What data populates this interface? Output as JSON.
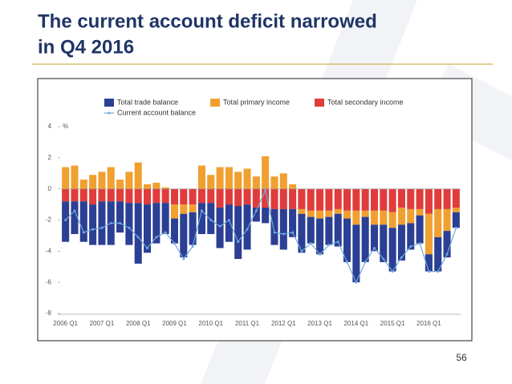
{
  "slide": {
    "title_lines": [
      "The current account deficit narrowed",
      "in Q4 2016"
    ],
    "page_number": 56
  },
  "chart_data": {
    "type": "bar",
    "stacked": true,
    "categories": [
      "2006 Q1",
      null,
      null,
      null,
      "2007 Q1",
      null,
      null,
      null,
      "2008 Q1",
      null,
      null,
      null,
      "2009 Q1",
      null,
      null,
      null,
      "2010 Q1",
      null,
      null,
      null,
      "2011 Q1",
      null,
      null,
      null,
      "2012 Q1",
      null,
      null,
      null,
      "2013 Q1",
      null,
      null,
      null,
      "2014 Q1",
      null,
      null,
      null,
      "2015 Q1",
      null,
      null,
      null,
      "2016 Q1",
      null,
      null,
      null
    ],
    "series": [
      {
        "name": "Total trade balance",
        "type": "bar",
        "color": "#2b3f94",
        "values": [
          -2.6,
          -2.1,
          -2.6,
          -2.6,
          -2.8,
          -2.8,
          -2.0,
          -2.7,
          -3.9,
          -3.1,
          -2.6,
          -2.0,
          -1.6,
          -2.8,
          -2.1,
          -2.0,
          -2.0,
          -2.6,
          -2.4,
          -3.4,
          -2.9,
          -0.9,
          -1.0,
          -2.3,
          -2.6,
          -1.8,
          -2.5,
          -1.7,
          -2.3,
          -1.8,
          -2.1,
          -2.8,
          -3.7,
          -2.9,
          -1.7,
          -2.4,
          -2.8,
          -2.3,
          -1.7,
          -1.8,
          -1.1,
          -2.2,
          -1.7,
          -1.0
        ]
      },
      {
        "name": "Total primary income",
        "type": "bar",
        "color": "#f0a030",
        "values": [
          1.4,
          1.5,
          0.6,
          0.9,
          1.1,
          1.4,
          0.6,
          1.1,
          1.7,
          0.3,
          0.4,
          0.1,
          -0.9,
          -0.6,
          -0.5,
          1.5,
          0.9,
          1.4,
          1.4,
          1.1,
          1.3,
          0.8,
          2.1,
          0.8,
          1.0,
          0.3,
          -0.3,
          -0.4,
          -0.5,
          -0.4,
          -0.3,
          -0.5,
          -0.9,
          -0.4,
          -0.9,
          -0.9,
          -1.0,
          -1.1,
          -0.9,
          -0.4,
          -2.6,
          -1.8,
          -1.4,
          -0.3
        ]
      },
      {
        "name": "Total secondary income",
        "type": "bar",
        "color": "#e03c3c",
        "values": [
          -0.8,
          -0.8,
          -0.8,
          -1.0,
          -0.8,
          -0.8,
          -0.8,
          -0.9,
          -0.9,
          -1.0,
          -0.9,
          -0.9,
          -1.0,
          -1.0,
          -1.0,
          -0.9,
          -0.9,
          -1.2,
          -1.0,
          -1.1,
          -1.0,
          -1.2,
          -1.2,
          -1.3,
          -1.3,
          -1.3,
          -1.3,
          -1.4,
          -1.4,
          -1.4,
          -1.3,
          -1.4,
          -1.4,
          -1.4,
          -1.4,
          -1.4,
          -1.5,
          -1.2,
          -1.3,
          -1.3,
          -1.6,
          -1.3,
          -1.3,
          -1.2
        ]
      },
      {
        "name": "Current account balance",
        "type": "line",
        "color": "#6fa8dc",
        "values": [
          -2.0,
          -1.4,
          -2.8,
          -2.6,
          -2.5,
          -2.2,
          -2.2,
          -2.5,
          -3.1,
          -3.8,
          -3.1,
          -2.8,
          -3.5,
          -4.5,
          -3.7,
          -1.4,
          -2.0,
          -2.4,
          -2.0,
          -3.4,
          -2.6,
          -1.4,
          -0.1,
          -2.8,
          -2.9,
          -2.8,
          -4.0,
          -3.5,
          -4.2,
          -3.6,
          -3.4,
          -4.7,
          -6.0,
          -4.7,
          -3.8,
          -4.5,
          -5.3,
          -4.4,
          -3.7,
          -3.5,
          -5.3,
          -5.3,
          -4.2,
          -2.5
        ]
      }
    ],
    "y_unit": "%",
    "ylim": [
      -8,
      4
    ],
    "yticks": [
      4,
      2,
      0,
      -2,
      -4,
      -6,
      -8
    ],
    "grid": false,
    "legend": "top"
  }
}
